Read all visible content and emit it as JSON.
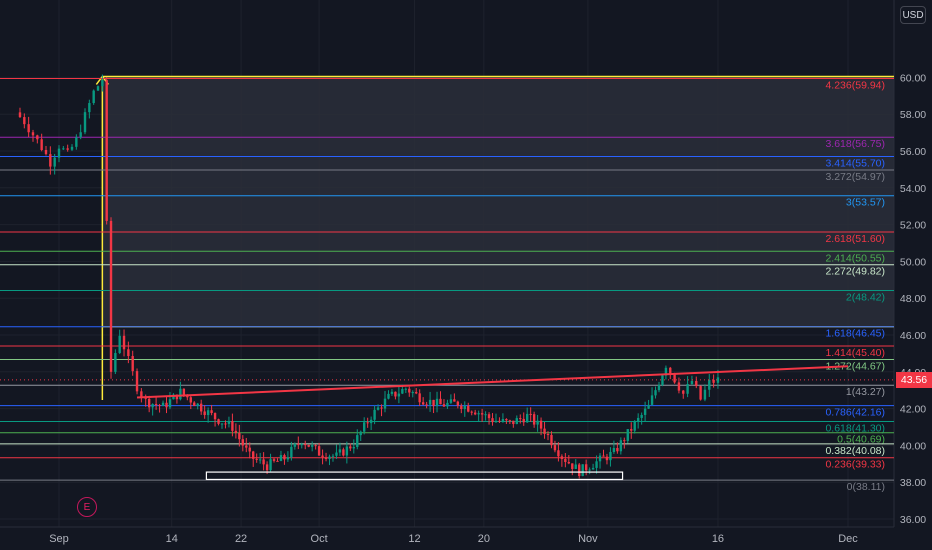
{
  "header": {
    "currency": "USD"
  },
  "last_price": {
    "label": "43.56",
    "value": 43.56,
    "color": "#f23645"
  },
  "earnings_marker": {
    "label": "E"
  },
  "chart_data": {
    "type": "candlestick",
    "title": "",
    "ylim": [
      36,
      61
    ],
    "y_ticks": [
      36,
      38,
      40,
      42,
      44,
      46,
      48,
      50,
      52,
      54,
      56,
      58,
      60
    ],
    "y_tick_labels": [
      "36.00",
      "38.00",
      "40.00",
      "42.00",
      "44.00",
      "46.00",
      "48.00",
      "50.00",
      "52.00",
      "54.00",
      "56.00",
      "58.00",
      "60.00"
    ],
    "x_tick_labels": [
      "Sep",
      "14",
      "22",
      "Oct",
      "12",
      "20",
      "Nov",
      "16",
      "Dec"
    ],
    "price_series": [
      [
        "Aug 27",
        58.1
      ],
      [
        "Aug 28",
        57.6
      ],
      [
        "Aug 29",
        56.9
      ],
      [
        "Aug 30",
        56.2
      ],
      [
        "Aug 31",
        55.4
      ],
      [
        "Sep 1",
        56.3
      ],
      [
        "Sep 2",
        55.8
      ],
      [
        "Sep 3",
        56.6
      ],
      [
        "Sep 4",
        57.9
      ],
      [
        "Sep 5",
        59.2
      ],
      [
        "Sep 6",
        59.9
      ],
      [
        "Sep 7",
        44.0
      ],
      [
        "Sep 8",
        46.1
      ],
      [
        "Sep 9",
        44.6
      ],
      [
        "Sep 10",
        43.2
      ],
      [
        "Sep 11",
        42.4
      ],
      [
        "Sep 13",
        42.1
      ],
      [
        "Sep 15",
        42.9
      ],
      [
        "Sep 17",
        42.2
      ],
      [
        "Sep 19",
        41.5
      ],
      [
        "Sep 21",
        41.0
      ],
      [
        "Sep 23",
        39.4
      ],
      [
        "Sep 25",
        38.9
      ],
      [
        "Sep 27",
        39.3
      ],
      [
        "Sep 29",
        40.3
      ],
      [
        "Oct 1",
        39.6
      ],
      [
        "Oct 3",
        39.4
      ],
      [
        "Oct 5",
        40.1
      ],
      [
        "Oct 7",
        41.6
      ],
      [
        "Oct 9",
        42.6
      ],
      [
        "Oct 11",
        43.1
      ],
      [
        "Oct 13",
        42.5
      ],
      [
        "Oct 15",
        42.2
      ],
      [
        "Oct 17",
        42.3
      ],
      [
        "Oct 19",
        41.9
      ],
      [
        "Oct 21",
        41.4
      ],
      [
        "Oct 23",
        41.2
      ],
      [
        "Oct 25",
        41.6
      ],
      [
        "Oct 27",
        40.8
      ],
      [
        "Oct 29",
        39.4
      ],
      [
        "Oct 31",
        38.6
      ],
      [
        "Nov 2",
        39.1
      ],
      [
        "Nov 4",
        39.6
      ],
      [
        "Nov 6",
        40.9
      ],
      [
        "Nov 8",
        42.1
      ],
      [
        "Nov 10",
        44.4
      ],
      [
        "Nov 11",
        43.6
      ],
      [
        "Nov 12",
        42.8
      ],
      [
        "Nov 13",
        43.5
      ],
      [
        "Nov 14",
        42.5
      ],
      [
        "Nov 15",
        43.4
      ],
      [
        "Nov 16",
        43.56
      ]
    ],
    "fib_levels": [
      {
        "label": "4.236(59.94)",
        "value": 59.94,
        "color": "#f23645"
      },
      {
        "label": "3.618(56.75)",
        "value": 56.75,
        "color": "#9c27b0"
      },
      {
        "label": "3.414(55.70)",
        "value": 55.7,
        "color": "#2962ff"
      },
      {
        "label": "3.272(54.97)",
        "value": 54.97,
        "color": "#787b86"
      },
      {
        "label": "3(53.57)",
        "value": 53.57,
        "color": "#2196f3"
      },
      {
        "label": "2.618(51.60)",
        "value": 51.6,
        "color": "#f23645"
      },
      {
        "label": "2.414(50.55)",
        "value": 50.55,
        "color": "#4caf50"
      },
      {
        "label": "2.272(49.82)",
        "value": 49.82,
        "color": "#c8e6c9"
      },
      {
        "label": "2(48.42)",
        "value": 48.42,
        "color": "#089981"
      },
      {
        "label": "1.618(46.45)",
        "value": 46.45,
        "color": "#2962ff"
      },
      {
        "label": "1.414(45.40)",
        "value": 45.4,
        "color": "#f23645"
      },
      {
        "label": "1.272(44.67)",
        "value": 44.67,
        "color": "#81c784"
      },
      {
        "label": "1(43.27)",
        "value": 43.27,
        "color": "#9598a1"
      },
      {
        "label": "0.786(42.16)",
        "value": 42.16,
        "color": "#2962ff"
      },
      {
        "label": "0.618(41.30)",
        "value": 41.3,
        "color": "#089981"
      },
      {
        "label": "0.5(40.69)",
        "value": 40.69,
        "color": "#4caf50"
      },
      {
        "label": "0.382(40.08)",
        "value": 40.08,
        "color": "#c8e6c9"
      },
      {
        "label": "0.236(39.33)",
        "value": 39.33,
        "color": "#f23645"
      },
      {
        "label": "0(38.11)",
        "value": 38.11,
        "color": "#787b86"
      }
    ],
    "fib_zone": {
      "top": 60.05,
      "bottom": 46.45,
      "start_date": "Sep 6"
    },
    "trendline": {
      "start": [
        "Sep 10",
        42.6
      ],
      "end": [
        "Dec 1",
        44.3
      ],
      "color": "#f23645"
    },
    "support_box": {
      "top": 38.55,
      "bottom": 38.15,
      "start_date": "Sep 18",
      "end_date": "Nov 5",
      "color": "#ffffff"
    },
    "colors": {
      "up": "#089981",
      "down": "#f23645",
      "background": "#131722",
      "grid": "#1e222d",
      "axis_text": "#b2b5be",
      "zone": "#2a2e39",
      "zone_edge": "#ffeb3b"
    }
  }
}
